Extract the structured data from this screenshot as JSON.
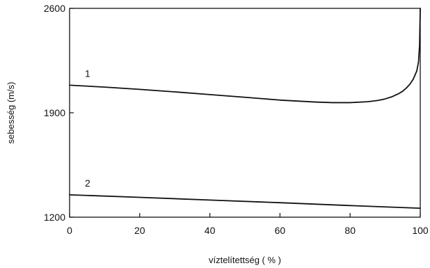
{
  "chart_data": {
    "type": "line",
    "title": "",
    "xlabel": "víztelítettség ( % )",
    "ylabel": "sebesség (m/s)",
    "xlim": [
      0,
      100
    ],
    "ylim": [
      1200,
      2600
    ],
    "x_ticks": [
      0,
      20,
      40,
      60,
      80,
      100
    ],
    "y_ticks": [
      1200,
      1900,
      2600
    ],
    "x_tick_labels": [
      "0",
      "20",
      "40",
      "60",
      "80",
      "100"
    ],
    "y_tick_labels": [
      "1200",
      "1900",
      "2600"
    ],
    "grid": false,
    "legend": "none",
    "line_color": "#111111",
    "series": [
      {
        "name": "1",
        "x": [
          0,
          10,
          20,
          30,
          40,
          50,
          60,
          70,
          75,
          80,
          85,
          88,
          90,
          92,
          94,
          95,
          96,
          97,
          98,
          99,
          99.5,
          99.8,
          100
        ],
        "y": [
          2085,
          2072,
          2057,
          2040,
          2022,
          2004,
          1985,
          1972,
          1968,
          1968,
          1974,
          1983,
          1993,
          2008,
          2030,
          2045,
          2065,
          2090,
          2125,
          2180,
          2240,
          2350,
          2600
        ]
      },
      {
        "name": "2",
        "x": [
          0,
          20,
          40,
          60,
          80,
          100
        ],
        "y": [
          1350,
          1333,
          1315,
          1297,
          1278,
          1260
        ]
      }
    ]
  }
}
